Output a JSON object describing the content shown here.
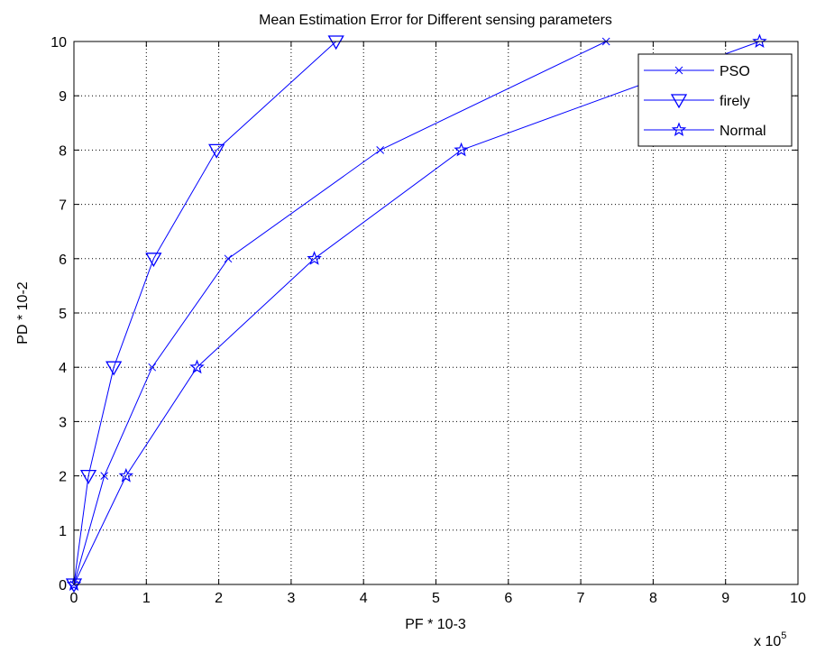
{
  "chart_data": {
    "type": "line",
    "title": "Mean Estimation Error for Different sensing parameters",
    "xlabel": "PF * 10-3",
    "ylabel": "PD * 10-2",
    "x_multiplier_base": "x 10",
    "x_multiplier_exponent": "5",
    "xlim": [
      0,
      10
    ],
    "ylim": [
      0,
      10
    ],
    "xticks": [
      0,
      1,
      2,
      3,
      4,
      5,
      6,
      7,
      8,
      9,
      10
    ],
    "yticks": [
      0,
      1,
      2,
      3,
      4,
      5,
      6,
      7,
      8,
      9,
      10
    ],
    "grid": true,
    "legend_position": "top-right",
    "series": [
      {
        "name": "PSO",
        "marker": "x",
        "color": "#0000FF",
        "x": [
          0,
          0.42,
          1.08,
          2.13,
          4.23,
          7.35
        ],
        "y": [
          0,
          2,
          4,
          6,
          8,
          10
        ]
      },
      {
        "name": "firely",
        "marker": "triangle-down",
        "color": "#0000FF",
        "x": [
          0,
          0.2,
          0.55,
          1.1,
          1.97,
          3.62
        ],
        "y": [
          0,
          2,
          4,
          6,
          8,
          10
        ]
      },
      {
        "name": "Normal",
        "marker": "star",
        "color": "#0000FF",
        "x": [
          0,
          0.72,
          1.7,
          3.32,
          5.35,
          9.47
        ],
        "y": [
          0,
          2,
          4,
          6,
          8,
          10
        ]
      }
    ]
  }
}
